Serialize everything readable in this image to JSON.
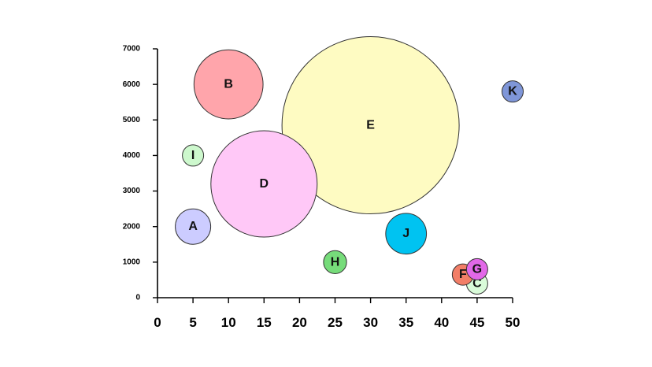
{
  "chart_data": {
    "type": "bubble",
    "title": "",
    "xlabel": "",
    "ylabel": "",
    "xlim": [
      0,
      50
    ],
    "ylim": [
      0,
      7000
    ],
    "xticks": [
      0,
      5,
      10,
      15,
      20,
      25,
      30,
      35,
      40,
      45,
      50
    ],
    "yticks": [
      0,
      1000,
      2000,
      3000,
      4000,
      5000,
      6000,
      7000
    ],
    "grid": false,
    "legend": "none",
    "points": [
      {
        "label": "A",
        "x": 5,
        "y": 2000,
        "size": 1.0,
        "color": "#ccccff"
      },
      {
        "label": "B",
        "x": 10,
        "y": 6000,
        "size": 1.95,
        "color": "#ffa5ab"
      },
      {
        "label": "C",
        "x": 45,
        "y": 400,
        "size": 0.6,
        "color": "#d9fbd9"
      },
      {
        "label": "D",
        "x": 15,
        "y": 3200,
        "size": 3.0,
        "color": "#ffc8f7"
      },
      {
        "label": "E",
        "x": 30,
        "y": 4850,
        "size": 5.0,
        "color": "#fefbc2"
      },
      {
        "label": "F",
        "x": 43,
        "y": 650,
        "size": 0.6,
        "color": "#f27e67"
      },
      {
        "label": "G",
        "x": 45,
        "y": 800,
        "size": 0.6,
        "color": "#e268e8"
      },
      {
        "label": "H",
        "x": 25,
        "y": 1000,
        "size": 0.65,
        "color": "#76dc7a"
      },
      {
        "label": "I",
        "x": 5,
        "y": 4000,
        "size": 0.6,
        "color": "#cdf8cd"
      },
      {
        "label": "J",
        "x": 35,
        "y": 1800,
        "size": 1.15,
        "color": "#00c3f1"
      },
      {
        "label": "K",
        "x": 50,
        "y": 5800,
        "size": 0.6,
        "color": "#7f96d8"
      }
    ]
  }
}
